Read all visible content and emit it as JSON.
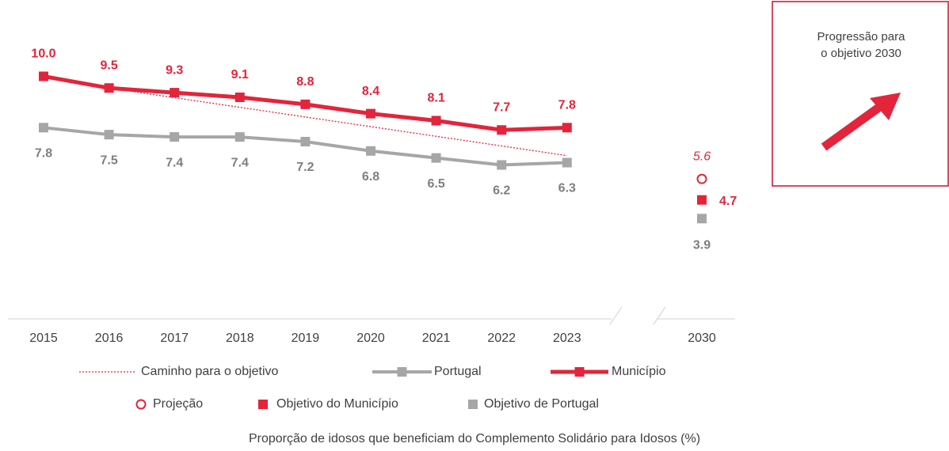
{
  "chart_data": {
    "type": "line",
    "caption": "Proporção de idosos que beneficiam do Complemento Solidário para Idosos (%)",
    "categories": [
      "2015",
      "2016",
      "2017",
      "2018",
      "2019",
      "2020",
      "2021",
      "2022",
      "2023"
    ],
    "target_category": "2030",
    "ylim": [
      -0.4,
      11
    ],
    "series": [
      {
        "name": "Portugal",
        "color": "#a6a6a6",
        "values": [
          7.8,
          7.5,
          7.4,
          7.4,
          7.2,
          6.8,
          6.5,
          6.2,
          6.3
        ],
        "value_labels": [
          "7.8",
          "7.5",
          "7.4",
          "7.4",
          "7.2",
          "6.8",
          "6.5",
          "6.2",
          "6.3"
        ]
      },
      {
        "name": "Município",
        "color": "#e3243b",
        "values": [
          10.0,
          9.5,
          9.3,
          9.1,
          8.8,
          8.4,
          8.1,
          7.7,
          7.8
        ],
        "value_labels": [
          "10.0",
          "9.5",
          "9.3",
          "9.1",
          "8.8",
          "8.4",
          "8.1",
          "7.7",
          "7.8"
        ]
      }
    ],
    "path": {
      "name": "Caminho para o objetivo",
      "color": "#e3243b",
      "x": [
        "2016",
        "2023"
      ],
      "values": [
        9.5,
        6.6
      ]
    },
    "targets": [
      {
        "name": "Projeção",
        "marker": "circle",
        "color": "#e3243b",
        "value": 5.6,
        "value_label": "5.6"
      },
      {
        "name": "Objetivo do Município",
        "marker": "square",
        "color": "#e3243b",
        "value": 4.7,
        "value_label": "4.7"
      },
      {
        "name": "Objetivo de Portugal",
        "marker": "square",
        "color": "#a6a6a6",
        "value": 3.9,
        "value_label": "3.9"
      }
    ]
  },
  "panel": {
    "title_lines": [
      "Progressão para",
      "o objetivo 2030"
    ]
  }
}
